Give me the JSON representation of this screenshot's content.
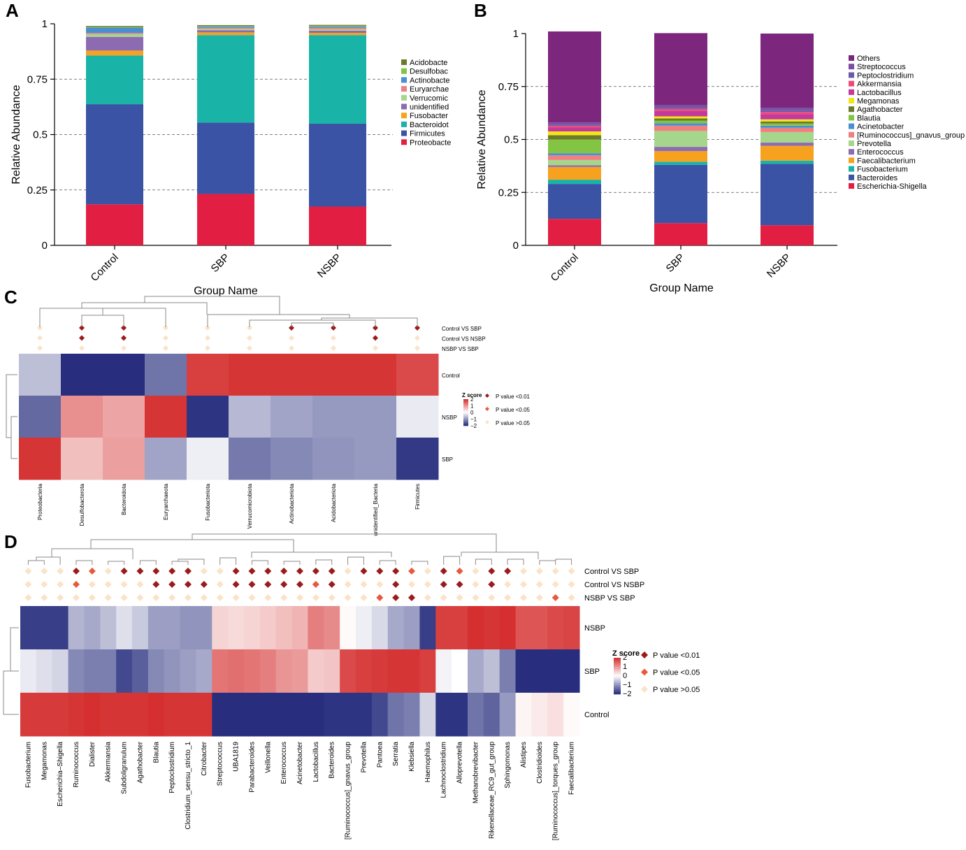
{
  "colors": {
    "dendro": "#8a8a8a",
    "sig_high": "#9b1b1b",
    "sig_mid": "#e8593e",
    "sig_low": "#fbe3c8",
    "zscore_low": "#22297a",
    "zscore_mid": "#ffffff",
    "zscore_high": "#d42a2a"
  },
  "chart_data": [
    {
      "panel": "A",
      "type": "bar",
      "stacked": true,
      "xlabel": "Group Name",
      "ylabel": "Relative Abundance",
      "ylim": [
        0,
        1
      ],
      "yticks": [
        "0",
        "0.25",
        "0.5",
        "0.75",
        "1"
      ],
      "categories": [
        "Control",
        "SBP",
        "NSBP"
      ],
      "grid": "horizontal dashed",
      "legend_position": "right",
      "series": [
        {
          "name": "Proteobacte",
          "color": "#e21f42",
          "values": [
            0.185,
            0.232,
            0.175
          ]
        },
        {
          "name": "Firmicutes",
          "color": "#3a53a4",
          "values": [
            0.452,
            0.322,
            0.374
          ]
        },
        {
          "name": "Bacteroidot",
          "color": "#1ab3a8",
          "values": [
            0.22,
            0.395,
            0.4
          ]
        },
        {
          "name": "Fusobacter",
          "color": "#f6a21e",
          "values": [
            0.022,
            0.012,
            0.01
          ]
        },
        {
          "name": "unidentified",
          "color": "#8d6bb3",
          "values": [
            0.062,
            0.01,
            0.01
          ]
        },
        {
          "name": "Verrucomic",
          "color": "#a6d68b",
          "values": [
            0.012,
            0.006,
            0.006
          ]
        },
        {
          "name": "Euryarchae",
          "color": "#f08080",
          "values": [
            0.005,
            0.005,
            0.007
          ]
        },
        {
          "name": "Actinobacte",
          "color": "#4a8fd0",
          "values": [
            0.025,
            0.006,
            0.006
          ]
        },
        {
          "name": "Desulfobac",
          "color": "#84c443",
          "values": [
            0.003,
            0.002,
            0.003
          ]
        },
        {
          "name": "Acidobacte",
          "color": "#6b7a2b",
          "values": [
            0.004,
            0.004,
            0.004
          ]
        }
      ]
    },
    {
      "panel": "B",
      "type": "bar",
      "stacked": true,
      "xlabel": "Group Name",
      "ylabel": "Relative Abundance",
      "ylim": [
        0,
        1
      ],
      "yticks": [
        "0",
        "0.25",
        "0.5",
        "0.75",
        "1"
      ],
      "categories": [
        "Control",
        "SBP",
        "NSBP"
      ],
      "grid": "horizontal dashed",
      "legend_position": "right",
      "series": [
        {
          "name": "Escherichia-Shigella",
          "color": "#e21f42",
          "values": [
            0.125,
            0.105,
            0.095
          ]
        },
        {
          "name": "Bacteroides",
          "color": "#3a53a4",
          "values": [
            0.165,
            0.275,
            0.29
          ]
        },
        {
          "name": "Fusobacterium",
          "color": "#1ab3a8",
          "values": [
            0.02,
            0.015,
            0.015
          ]
        },
        {
          "name": "Faecalibacterium",
          "color": "#f6a21e",
          "values": [
            0.06,
            0.05,
            0.07
          ]
        },
        {
          "name": "Enterococcus",
          "color": "#8d6bb3",
          "values": [
            0.008,
            0.02,
            0.015
          ]
        },
        {
          "name": "Prevotella",
          "color": "#a6d68b",
          "values": [
            0.025,
            0.075,
            0.05
          ]
        },
        {
          "name": "[Ruminococcus]_gnavus_group",
          "color": "#f08080",
          "values": [
            0.022,
            0.025,
            0.02
          ]
        },
        {
          "name": "Acinetobacter",
          "color": "#4a8fd0",
          "values": [
            0.01,
            0.012,
            0.01
          ]
        },
        {
          "name": "Blautia",
          "color": "#84c443",
          "values": [
            0.065,
            0.012,
            0.01
          ]
        },
        {
          "name": "Agathobacter",
          "color": "#6b7a2b",
          "values": [
            0.02,
            0.01,
            0.01
          ]
        },
        {
          "name": "Megamonas",
          "color": "#f2e61a",
          "values": [
            0.018,
            0.01,
            0.01
          ]
        },
        {
          "name": "Lactobacillus",
          "color": "#c4399b",
          "values": [
            0.018,
            0.025,
            0.025
          ]
        },
        {
          "name": "Akkermansia",
          "color": "#ec4a7a",
          "values": [
            0.008,
            0.01,
            0.01
          ]
        },
        {
          "name": "Peptoclostridium",
          "color": "#6a5aa8",
          "values": [
            0.006,
            0.008,
            0.008
          ]
        },
        {
          "name": "Streptococcus",
          "color": "#7b4ea3",
          "values": [
            0.01,
            0.01,
            0.012
          ]
        },
        {
          "name": "Others",
          "color": "#7d267d",
          "values": [
            0.43,
            0.34,
            0.35
          ]
        }
      ]
    },
    {
      "panel": "C",
      "type": "heatmap",
      "color_scale": "Z score",
      "scale_ticks": [
        "2",
        "1",
        "0",
        "−1",
        "−2"
      ],
      "columns": [
        "Proteobacteria",
        "Desulfobacterota",
        "Bacteroidota",
        "Euryarchaeota",
        "Fusobacteriota",
        "Verrucomicrobiota",
        "Actinobacteriota",
        "Acidobacteriota",
        "unidentified_Bacteria",
        "Firmicutes"
      ],
      "rows": [
        "Control",
        "NSBP",
        "SBP"
      ],
      "values": [
        [
          -0.6,
          -1.95,
          -1.95,
          -1.3,
          1.8,
          1.9,
          1.9,
          1.9,
          1.9,
          1.7
        ],
        [
          -1.4,
          1.05,
          0.85,
          1.9,
          -1.9,
          -0.65,
          -0.85,
          -0.95,
          -0.95,
          -0.2
        ],
        [
          1.9,
          0.6,
          0.9,
          -0.85,
          -0.15,
          -1.25,
          -1.1,
          -1.0,
          -0.95,
          -1.85
        ]
      ],
      "comparisons": [
        "Control VS SBP",
        "Control VS NSBP",
        "NSBP VS SBP"
      ],
      "significance": [
        [
          "low",
          "high",
          "high",
          "low",
          "low",
          "low",
          "high",
          "high",
          "high",
          "high"
        ],
        [
          "low",
          "high",
          "high",
          "low",
          "low",
          "low",
          "low",
          "low",
          "high",
          "low"
        ],
        [
          "low",
          "low",
          "low",
          "low",
          "low",
          "low",
          "low",
          "low",
          "low",
          "low"
        ]
      ],
      "legend": [
        "P value <0.01",
        "P value <0.05",
        "P value >0.05"
      ]
    },
    {
      "panel": "D",
      "type": "heatmap",
      "color_scale": "Z score",
      "scale_ticks": [
        "2",
        "1",
        "0",
        "−1",
        "−2"
      ],
      "columns": [
        "Fusobacterium",
        "Megamonas",
        "Escherichia–Shigella",
        "Ruminococcus",
        "Dialister",
        "Akkermansia",
        "Subdoligranulum",
        "Agathobacter",
        "Blautia",
        "Peptoclostridium",
        "Clostridium_sensu_stricto_1",
        "Citrobacter",
        "Streptococcus",
        "UBA1819",
        "Parabacteroides",
        "Veillonella",
        "Enterococcus",
        "Acinetobacter",
        "Lactobacillus",
        "Bacteroides",
        "[Ruminococcus]_gnavus_group",
        "Prevotella",
        "Pantoea",
        "Serratia",
        "Klebsiella",
        "Haemophilus",
        "Lachnoclostridium",
        "Alloprevotella",
        "Methanobrevibacter",
        "Rikenellaceae_RC9_gut_group",
        "Sphingomonas",
        "Alistipes",
        "Clostridioides",
        "[Ruminococcus]_torques_group",
        "Faecalibacterium"
      ],
      "rows": [
        "NSBP",
        "SBP",
        "Control"
      ],
      "values": [
        [
          -1.8,
          -1.8,
          -1.8,
          -0.7,
          -0.8,
          -0.6,
          -0.3,
          -0.5,
          -0.9,
          -0.9,
          -1.0,
          -1.0,
          0.4,
          0.35,
          0.4,
          0.5,
          0.6,
          0.7,
          1.2,
          1.1,
          0.05,
          -0.15,
          -0.35,
          -0.8,
          -0.9,
          -1.8,
          1.8,
          1.8,
          1.95,
          1.9,
          1.95,
          1.6,
          1.6,
          1.7,
          1.75
        ],
        [
          -0.2,
          -0.3,
          -0.4,
          -1.1,
          -1.2,
          -1.2,
          -1.7,
          -1.5,
          -1.1,
          -1.0,
          -0.9,
          -0.8,
          1.3,
          1.35,
          1.3,
          1.2,
          1.0,
          0.95,
          0.5,
          0.55,
          1.7,
          1.8,
          1.85,
          1.9,
          1.9,
          1.8,
          -0.1,
          0.0,
          -0.8,
          -0.6,
          -1.2,
          -1.95,
          -1.95,
          -1.95,
          -1.95
        ],
        [
          1.85,
          1.85,
          1.85,
          1.9,
          1.95,
          1.9,
          1.9,
          1.9,
          1.95,
          1.9,
          1.9,
          1.9,
          -1.95,
          -1.95,
          -1.95,
          -1.95,
          -1.95,
          -1.95,
          -1.95,
          -1.9,
          -1.9,
          -1.9,
          -1.7,
          -1.3,
          -1.2,
          -0.4,
          -1.9,
          -1.9,
          -1.3,
          -1.45,
          -0.95,
          0.1,
          0.2,
          0.3,
          0.05
        ]
      ],
      "comparisons": [
        "Control VS SBP",
        "Control VS NSBP",
        "NSBP VS SBP"
      ],
      "significance": [
        [
          "low",
          "low",
          "low",
          "high",
          "mid",
          "low",
          "high",
          "high",
          "high",
          "high",
          "high",
          "low",
          "low",
          "high",
          "high",
          "high",
          "high",
          "high",
          "high",
          "high",
          "low",
          "high",
          "high",
          "high",
          "mid",
          "low",
          "high",
          "mid",
          "low",
          "high",
          "high",
          "low",
          "low",
          "low",
          "low"
        ],
        [
          "low",
          "low",
          "low",
          "mid",
          "low",
          "low",
          "low",
          "low",
          "high",
          "high",
          "high",
          "high",
          "low",
          "high",
          "high",
          "high",
          "high",
          "high",
          "mid",
          "high",
          "low",
          "low",
          "low",
          "high",
          "low",
          "low",
          "high",
          "high",
          "low",
          "high",
          "low",
          "low",
          "low",
          "low",
          "low"
        ],
        [
          "low",
          "low",
          "low",
          "low",
          "low",
          "low",
          "low",
          "low",
          "low",
          "low",
          "low",
          "low",
          "low",
          "low",
          "low",
          "low",
          "low",
          "low",
          "low",
          "low",
          "low",
          "low",
          "mid",
          "high",
          "high",
          "low",
          "low",
          "low",
          "low",
          "low",
          "low",
          "low",
          "low",
          "mid",
          "low"
        ]
      ],
      "legend": [
        "P value <0.01",
        "P value <0.05",
        "P value >0.05"
      ]
    }
  ]
}
